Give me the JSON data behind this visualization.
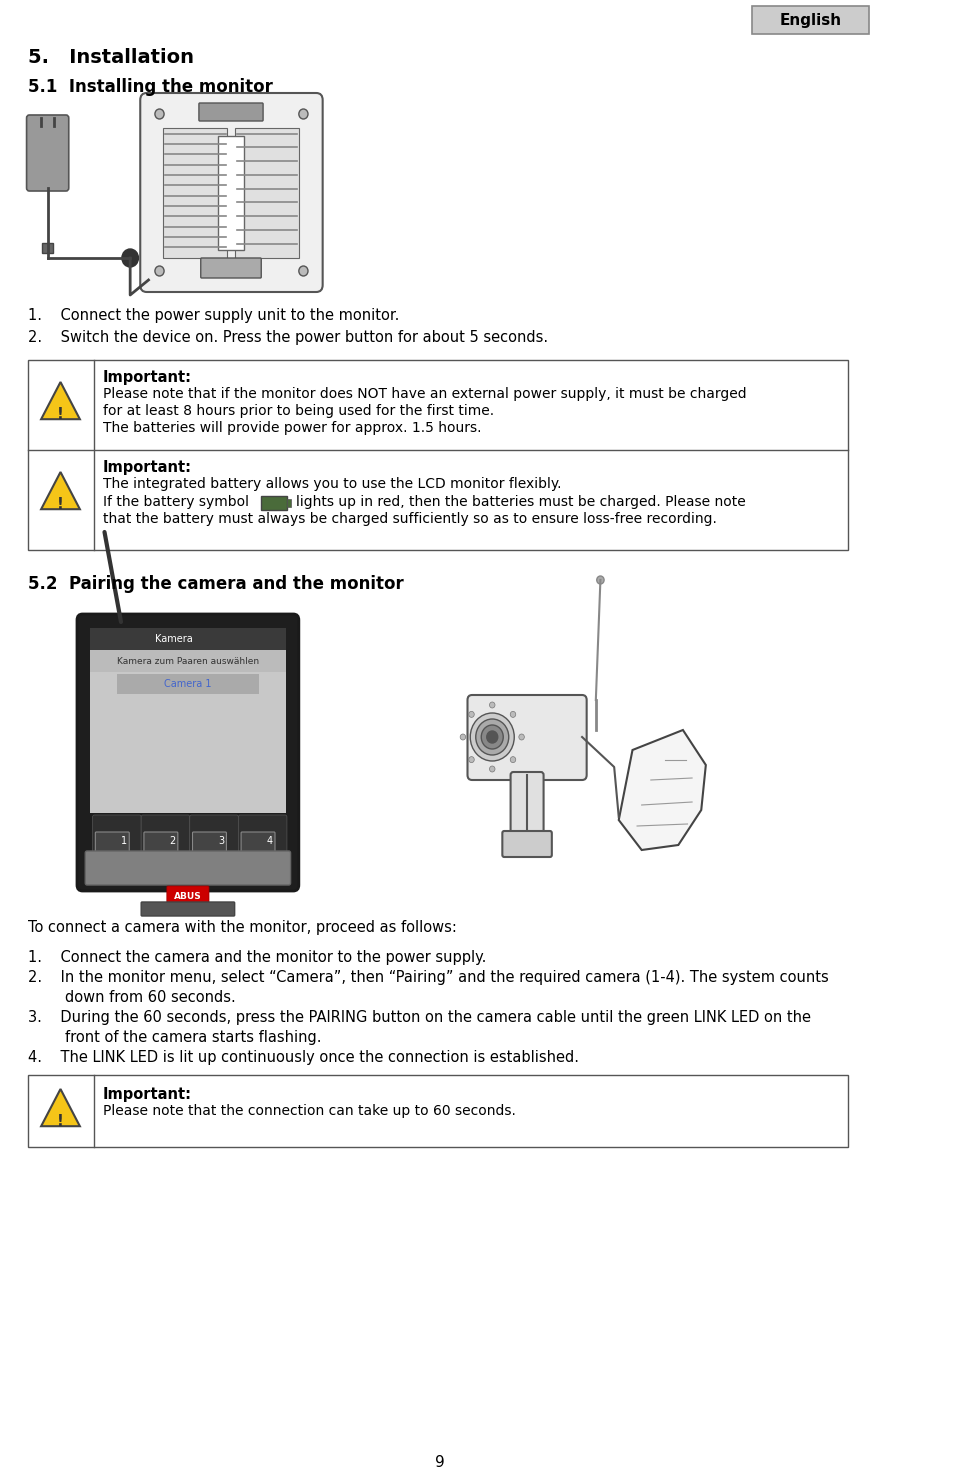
{
  "page_number": "9",
  "bg_color": "#ffffff",
  "english_label": "English",
  "section_title": "5.   Installation",
  "subsection1": "5.1  Installing the monitor",
  "step1_text": "1.    Connect the power supply unit to the monitor.",
  "step2_text": "2.    Switch the device on. Press the power button for about 5 seconds.",
  "important1_bold": "Important:",
  "important1_line1": "Please note that if the monitor does NOT have an external power supply, it must be charged",
  "important1_line2": "for at least 8 hours prior to being used for the first time.",
  "important1_line3": "The batteries will provide power for approx. 1.5 hours.",
  "important2_bold": "Important:",
  "important2_line1": "The integrated battery allows you to use the LCD monitor flexibly.",
  "important2_line2a": "If the battery symbol        lights up in red, then the batteries must be charged. Please note",
  "important2_line2b": "that the battery must always be charged sufficiently so as to ensure loss-free recording.",
  "subsection2": "5.2  Pairing the camera and the monitor",
  "pairing_intro": "To connect a camera with the monitor, proceed as follows:",
  "pairing_step1": "1.    Connect the camera and the monitor to the power supply.",
  "pairing_step2a": "2.    In the monitor menu, select “Camera”, then “Pairing” and the required camera (1-4). The system counts",
  "pairing_step2b": "        down from 60 seconds.",
  "pairing_step3a": "3.    During the 60 seconds, press the PAIRING button on the camera cable until the green LINK LED on the",
  "pairing_step3b": "        front of the camera starts flashing.",
  "pairing_step4": "4.    The LINK LED is lit up continuously once the connection is established.",
  "important3_bold": "Important:",
  "important3_text": "Please note that the connection can take up to 60 seconds.",
  "text_color": "#000000",
  "border_color": "#000000",
  "warning_bg": "#ffffff",
  "warning_border": "#555555",
  "english_bg": "#cccccc"
}
